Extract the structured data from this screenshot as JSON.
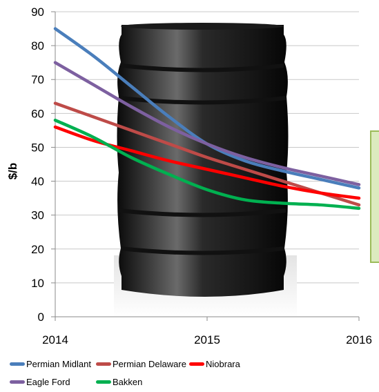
{
  "chart_data": {
    "type": "line",
    "ylabel": "$/b",
    "xlabel": "",
    "xlim": [
      2014,
      2016
    ],
    "ylim": [
      0,
      90
    ],
    "x_ticks": [
      "2014",
      "2015",
      "2016"
    ],
    "y_ticks": [
      "0",
      "10",
      "20",
      "30",
      "40",
      "50",
      "60",
      "70",
      "80",
      "90"
    ],
    "grid": "horizontal",
    "legend_position": "bottom",
    "series": [
      {
        "name": "Permian Midlant",
        "color": "#4a7ebb",
        "x": [
          2014,
          2014.25,
          2014.5,
          2014.75,
          2015,
          2015.25,
          2015.5,
          2015.75,
          2016
        ],
        "y": [
          85,
          77,
          68,
          59,
          51,
          46,
          43,
          40.5,
          38
        ]
      },
      {
        "name": "Permian Delaware",
        "color": "#be4b48",
        "x": [
          2014,
          2014.25,
          2014.5,
          2014.75,
          2015,
          2015.25,
          2015.5,
          2015.75,
          2016
        ],
        "y": [
          63,
          59,
          55,
          51,
          47,
          43.5,
          40,
          36.5,
          33
        ]
      },
      {
        "name": "Niobrara",
        "color": "#ff0000",
        "x": [
          2014,
          2014.25,
          2014.5,
          2014.75,
          2015,
          2015.25,
          2015.5,
          2015.75,
          2016
        ],
        "y": [
          56,
          52,
          49,
          46,
          43.5,
          41,
          38.5,
          36.5,
          35
        ]
      },
      {
        "name": "Eagle Ford",
        "color": "#7d60a0",
        "x": [
          2014,
          2014.25,
          2014.5,
          2014.75,
          2015,
          2015.25,
          2015.5,
          2015.75,
          2016
        ],
        "y": [
          75,
          68.5,
          62,
          56,
          51,
          47,
          44,
          41.5,
          39
        ]
      },
      {
        "name": "Bakken",
        "color": "#00b050",
        "x": [
          2014,
          2014.25,
          2014.5,
          2014.75,
          2015,
          2015.25,
          2015.5,
          2015.75,
          2016
        ],
        "y": [
          58,
          53,
          47,
          42,
          37.5,
          34.5,
          33.5,
          33,
          32
        ]
      }
    ]
  }
}
